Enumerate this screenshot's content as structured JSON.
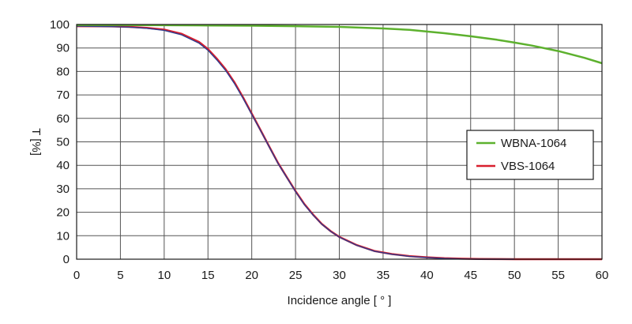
{
  "chart_data": {
    "type": "line",
    "xlabel": "Incidence angle  [ ° ]",
    "ylabel": "T [%]",
    "xlim": [
      0,
      60
    ],
    "ylim": [
      0,
      100
    ],
    "x_ticks": [
      0,
      5,
      10,
      15,
      20,
      25,
      30,
      35,
      40,
      45,
      50,
      55,
      60
    ],
    "y_ticks": [
      0,
      10,
      20,
      30,
      40,
      50,
      60,
      70,
      80,
      90,
      100
    ],
    "grid": true,
    "legend_position": "right",
    "series": [
      {
        "name": "WBNA-1064",
        "color": "#5db12e",
        "x": [
          0,
          5,
          10,
          15,
          20,
          25,
          30,
          35,
          38,
          40,
          42,
          45,
          48,
          50,
          52,
          55,
          58,
          60
        ],
        "y": [
          99.8,
          99.8,
          99.7,
          99.6,
          99.5,
          99.3,
          99.0,
          98.3,
          97.7,
          97.0,
          96.3,
          95.0,
          93.5,
          92.3,
          91.0,
          88.7,
          85.8,
          83.5
        ]
      },
      {
        "name": "VBS-1064",
        "color": "#d81f2e",
        "x": [
          0,
          4,
          6,
          8,
          10,
          12,
          14,
          15,
          16,
          17,
          18,
          19,
          20,
          21,
          22,
          23,
          24,
          25,
          26,
          27,
          28,
          29,
          30,
          32,
          34,
          36,
          38,
          40,
          42,
          44,
          46,
          50,
          55,
          60
        ],
        "y": [
          99.3,
          99.2,
          99.0,
          98.6,
          97.8,
          96.0,
          92.5,
          89.5,
          85.5,
          81.0,
          75.5,
          69.0,
          62.0,
          55.0,
          48.0,
          41.0,
          35.0,
          29.0,
          23.5,
          19.0,
          15.0,
          12.0,
          9.5,
          6.0,
          3.5,
          2.2,
          1.3,
          0.8,
          0.4,
          0.2,
          0.1,
          0.0,
          0.0,
          0.0
        ]
      }
    ],
    "overlay_line": {
      "color": "#2d3a8c",
      "x": [
        0,
        4,
        6,
        8,
        10,
        12,
        14,
        15,
        16,
        17,
        18,
        19,
        20,
        21,
        22,
        23,
        24,
        25,
        26,
        27,
        28,
        29,
        30,
        32,
        34,
        36,
        38,
        40,
        42,
        44,
        46,
        50
      ],
      "y": [
        99.3,
        99.1,
        98.9,
        98.4,
        97.5,
        95.6,
        92.0,
        89.0,
        85.0,
        80.5,
        75.0,
        68.6,
        61.7,
        54.8,
        47.8,
        40.8,
        34.8,
        28.8,
        23.3,
        18.8,
        14.9,
        11.9,
        9.4,
        5.9,
        3.4,
        2.1,
        1.2,
        0.7,
        0.3,
        0.1,
        0.0,
        0.0
      ]
    }
  }
}
